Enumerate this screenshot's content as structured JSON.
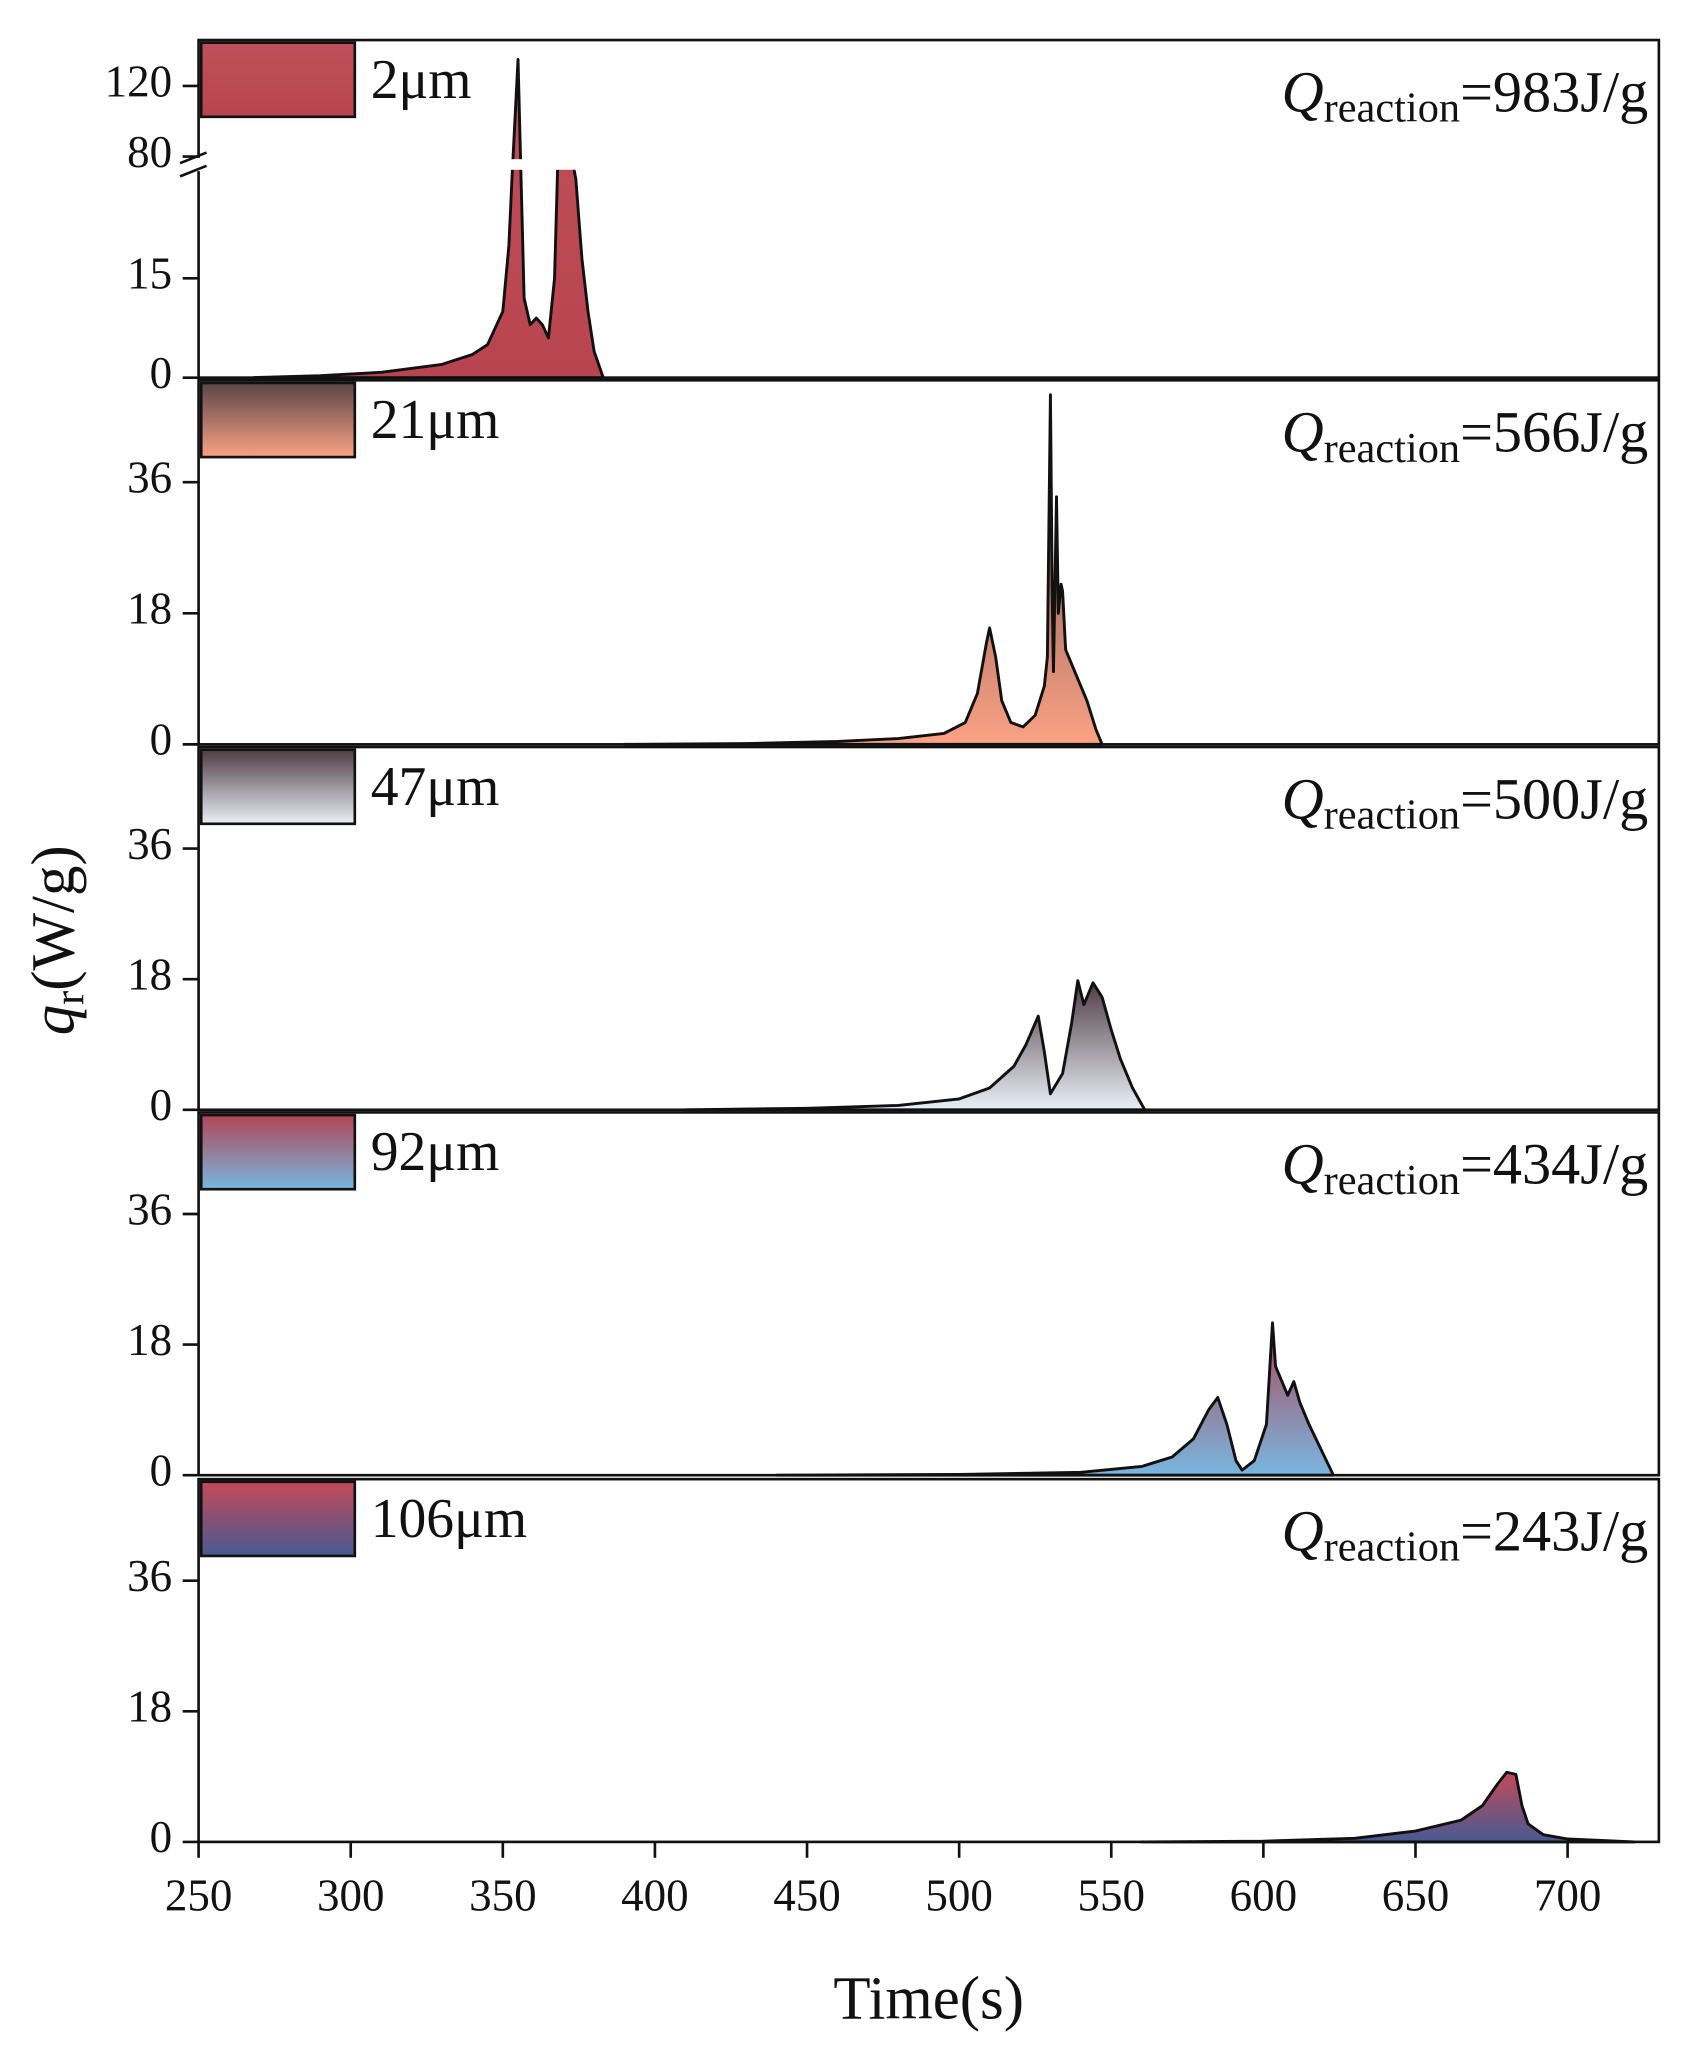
{
  "chart_data": [
    {
      "type": "area",
      "name": "2μm",
      "colors": [
        "#c0505b",
        "#b8444f"
      ],
      "annotation": {
        "symbol": "Q",
        "subscript": "reaction",
        "text": "=983J/g"
      },
      "xlim": [
        250,
        730
      ],
      "ylim": [
        0,
        146
      ],
      "ybreak": [
        31,
        80
      ],
      "yticks": [
        0,
        15,
        80,
        120
      ],
      "x": [
        268,
        290,
        310,
        330,
        340,
        345,
        350,
        352,
        353,
        355,
        356,
        357,
        359,
        361,
        363,
        365,
        367,
        368,
        370,
        373,
        374,
        376,
        378,
        380,
        383
      ],
      "values": [
        0,
        0.3,
        0.8,
        2,
        3.5,
        5,
        10,
        20,
        30,
        135,
        30,
        12,
        8,
        9,
        8,
        6,
        15,
        40,
        60,
        60,
        30,
        18,
        10,
        4,
        0
      ]
    },
    {
      "type": "area",
      "name": "21μm",
      "colors": [
        "#5a4448",
        "#fba284"
      ],
      "annotation": {
        "symbol": "Q",
        "subscript": "reaction",
        "text": "=566J/g"
      },
      "xlim": [
        250,
        730
      ],
      "ylim": [
        0,
        50
      ],
      "yticks": [
        0,
        18,
        36
      ],
      "x": [
        390,
        430,
        460,
        480,
        495,
        502,
        506,
        509,
        510,
        512,
        514,
        517,
        521,
        525,
        528,
        529,
        530,
        530.6,
        531,
        532,
        532.6,
        533.5,
        534,
        535,
        538,
        542,
        545,
        547
      ],
      "values": [
        0,
        0.1,
        0.4,
        0.8,
        1.5,
        3,
        7,
        14,
        16,
        12,
        6,
        3,
        2.4,
        4,
        8,
        12,
        48,
        20,
        10,
        34,
        18,
        22,
        21,
        13,
        10,
        6,
        2,
        0
      ]
    },
    {
      "type": "area",
      "name": "47μm",
      "colors": [
        "#4e3c42",
        "#eaf0f8"
      ],
      "annotation": {
        "symbol": "Q",
        "subscript": "reaction",
        "text": "=500J/g"
      },
      "ylabel": {
        "symbol": "q",
        "subscript": "r",
        "text": "(W/g)"
      },
      "xlim": [
        250,
        730
      ],
      "ylim": [
        0,
        50
      ],
      "yticks": [
        0,
        18,
        36
      ],
      "x": [
        410,
        450,
        480,
        500,
        510,
        518,
        522,
        526,
        528,
        530,
        534,
        537,
        539,
        541,
        544,
        547,
        550,
        553,
        557,
        561
      ],
      "values": [
        0,
        0.2,
        0.6,
        1.5,
        3,
        6,
        9,
        12.9,
        8,
        2.2,
        5,
        12,
        17.8,
        14.5,
        17.5,
        15.5,
        11,
        7,
        3,
        0
      ]
    },
    {
      "type": "area",
      "name": "92μm",
      "colors": [
        "#b04656",
        "#78b6e0"
      ],
      "annotation": {
        "symbol": "Q",
        "subscript": "reaction",
        "text": "=434J/g"
      },
      "xlim": [
        250,
        730
      ],
      "ylim": [
        0,
        50
      ],
      "yticks": [
        0,
        18,
        36
      ],
      "x": [
        440,
        500,
        540,
        560,
        570,
        577,
        582,
        585,
        588,
        591,
        593,
        597,
        601,
        602,
        603,
        604,
        606,
        608,
        610,
        612,
        615,
        619,
        623
      ],
      "values": [
        0,
        0.1,
        0.4,
        1.2,
        2.5,
        5,
        9,
        10.7,
        7,
        2,
        0.7,
        2,
        7,
        14,
        21,
        15,
        13,
        11,
        12.9,
        10,
        7,
        3.5,
        0
      ]
    },
    {
      "type": "area",
      "name": "106μm",
      "colors": [
        "#c44a58",
        "#465a92"
      ],
      "annotation": {
        "symbol": "Q",
        "subscript": "reaction",
        "text": "=243J/g"
      },
      "xlabel": "Time(s)",
      "xlim": [
        250,
        730
      ],
      "ylim": [
        0,
        50
      ],
      "yticks": [
        0,
        18,
        36
      ],
      "xticks": [
        250,
        300,
        350,
        400,
        450,
        500,
        550,
        600,
        650,
        700
      ],
      "x": [
        560,
        600,
        630,
        650,
        665,
        672,
        677,
        680,
        683,
        685,
        687,
        692,
        700,
        722
      ],
      "values": [
        0,
        0.1,
        0.5,
        1.5,
        3,
        5,
        8,
        9.6,
        9.3,
        5,
        2.5,
        1,
        0.4,
        0
      ]
    }
  ]
}
